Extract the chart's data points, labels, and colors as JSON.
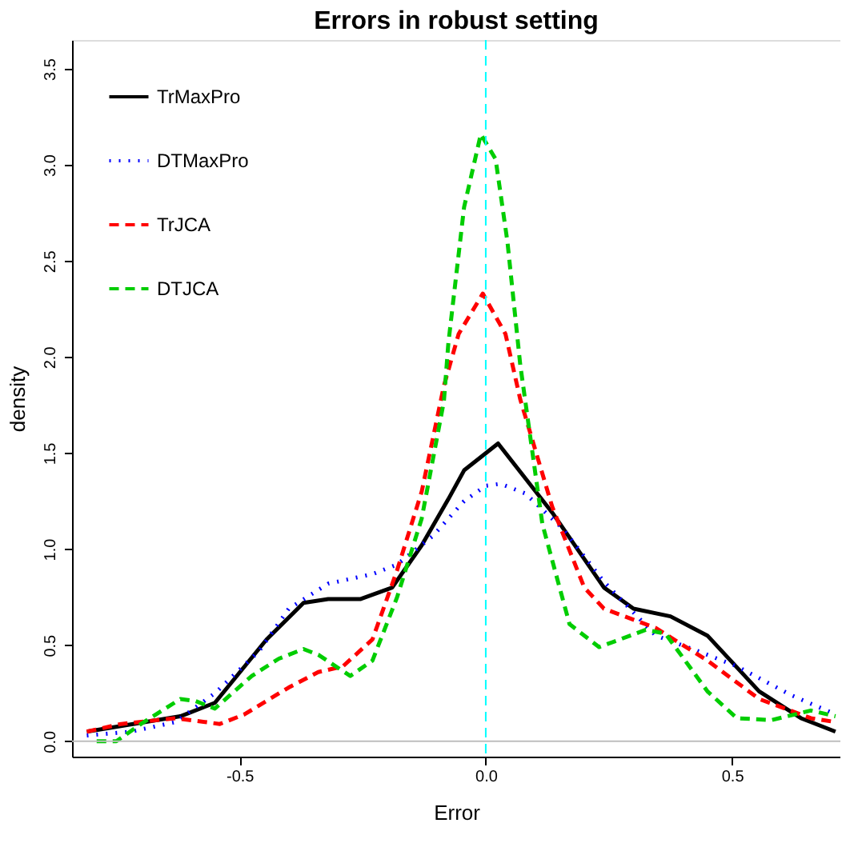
{
  "chart_data": {
    "type": "line",
    "title": "Errors in robust setting",
    "xlabel": "Error",
    "ylabel": "density",
    "xlim": [
      -0.84,
      0.72
    ],
    "ylim": [
      -0.08,
      3.65
    ],
    "xticks": [
      {
        "value": -0.5,
        "label": "-0.5"
      },
      {
        "value": 0,
        "label": "0.0"
      },
      {
        "value": 0.5,
        "label": "0.5"
      }
    ],
    "yticks": [
      {
        "value": 0,
        "label": "0.0"
      },
      {
        "value": 0.5,
        "label": "0.5"
      },
      {
        "value": 1,
        "label": "1.0"
      },
      {
        "value": 1.5,
        "label": "1.5"
      },
      {
        "value": 2,
        "label": "2.0"
      },
      {
        "value": 2.5,
        "label": "2.5"
      },
      {
        "value": 3,
        "label": "3.0"
      },
      {
        "value": 3.5,
        "label": "3.5"
      }
    ],
    "grid": false,
    "legend": "top left",
    "marker": "none",
    "ref_lines": [
      {
        "axis": "y",
        "value": 0,
        "color": "#bebebe",
        "line_style": "solid"
      },
      {
        "axis": "x",
        "value": 0,
        "color": "#00ffff",
        "line_style": "dashed"
      }
    ],
    "series": [
      {
        "name": "TrMaxPro",
        "color": "#000000",
        "line_style": "solid",
        "x": [
          -0.81,
          -0.62,
          -0.55,
          -0.445,
          -0.37,
          -0.32,
          -0.255,
          -0.19,
          -0.13,
          -0.076,
          -0.044,
          0.025,
          0.135,
          0.24,
          0.3,
          0.375,
          0.45,
          0.555,
          0.64,
          0.71
        ],
        "values": [
          0.05,
          0.13,
          0.2,
          0.53,
          0.72,
          0.74,
          0.74,
          0.8,
          1.02,
          1.26,
          1.41,
          1.55,
          1.19,
          0.8,
          0.69,
          0.65,
          0.55,
          0.26,
          0.12,
          0.05
        ]
      },
      {
        "name": "DTMaxPro",
        "color": "#0000ff",
        "line_style": "dotted",
        "x": [
          -0.81,
          -0.72,
          -0.63,
          -0.55,
          -0.46,
          -0.4,
          -0.32,
          -0.23,
          -0.18,
          -0.107,
          -0.044,
          0,
          0.03,
          0.08,
          0.155,
          0.24,
          0.345,
          0.43,
          0.51,
          0.62,
          0.71
        ],
        "values": [
          0.03,
          0.05,
          0.1,
          0.25,
          0.47,
          0.69,
          0.82,
          0.87,
          0.92,
          1.07,
          1.25,
          1.33,
          1.34,
          1.29,
          1.11,
          0.83,
          0.55,
          0.47,
          0.39,
          0.24,
          0.14
        ]
      },
      {
        "name": "TrJCA",
        "color": "#ff0000",
        "line_style": "dashed",
        "x": [
          -0.81,
          -0.74,
          -0.63,
          -0.54,
          -0.49,
          -0.4,
          -0.34,
          -0.29,
          -0.23,
          -0.18,
          -0.13,
          -0.085,
          -0.055,
          -0.006,
          0.04,
          0.07,
          0.135,
          0.2,
          0.24,
          0.345,
          0.45,
          0.555,
          0.66,
          0.71
        ],
        "values": [
          0.05,
          0.09,
          0.12,
          0.09,
          0.14,
          0.28,
          0.36,
          0.39,
          0.53,
          0.89,
          1.3,
          1.85,
          2.12,
          2.33,
          2.12,
          1.78,
          1.22,
          0.8,
          0.69,
          0.59,
          0.42,
          0.22,
          0.12,
          0.1
        ]
      },
      {
        "name": "DTJCA",
        "color": "#00cd00",
        "line_style": "dashed",
        "x": [
          -0.79,
          -0.75,
          -0.7,
          -0.62,
          -0.59,
          -0.55,
          -0.475,
          -0.42,
          -0.37,
          -0.34,
          -0.275,
          -0.23,
          -0.18,
          -0.13,
          -0.085,
          -0.076,
          -0.044,
          -0.01,
          0.02,
          0.044,
          0.07,
          0.115,
          0.17,
          0.23,
          0.325,
          0.365,
          0.45,
          0.51,
          0.58,
          0.66,
          0.71
        ],
        "values": [
          0.0,
          0.0,
          0.09,
          0.22,
          0.21,
          0.17,
          0.34,
          0.43,
          0.48,
          0.45,
          0.34,
          0.42,
          0.75,
          1.16,
          1.77,
          2.07,
          2.78,
          3.16,
          3.03,
          2.6,
          1.96,
          1.13,
          0.61,
          0.49,
          0.58,
          0.56,
          0.26,
          0.12,
          0.11,
          0.16,
          0.13
        ]
      }
    ]
  }
}
